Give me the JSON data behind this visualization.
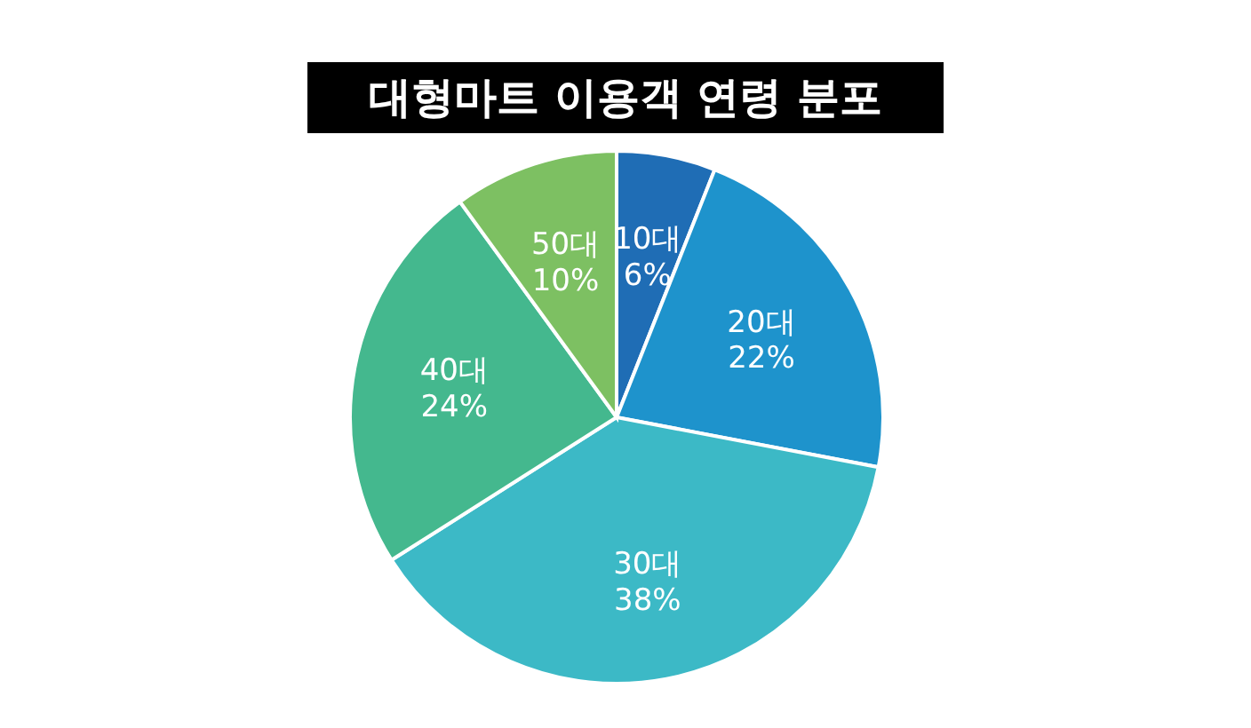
{
  "chart_data": {
    "type": "pie",
    "title": "대형마트 이용객 연령 분포",
    "categories": [
      "10대",
      "20대",
      "30대",
      "40대",
      "50대"
    ],
    "values": [
      6,
      22,
      38,
      24,
      10
    ],
    "colors": [
      "#1f6db5",
      "#1e93cc",
      "#3cb9c6",
      "#44b88e",
      "#7dc062"
    ],
    "value_labels": [
      "6%",
      "22%",
      "38%",
      "24%",
      "10%"
    ],
    "legend": false
  }
}
